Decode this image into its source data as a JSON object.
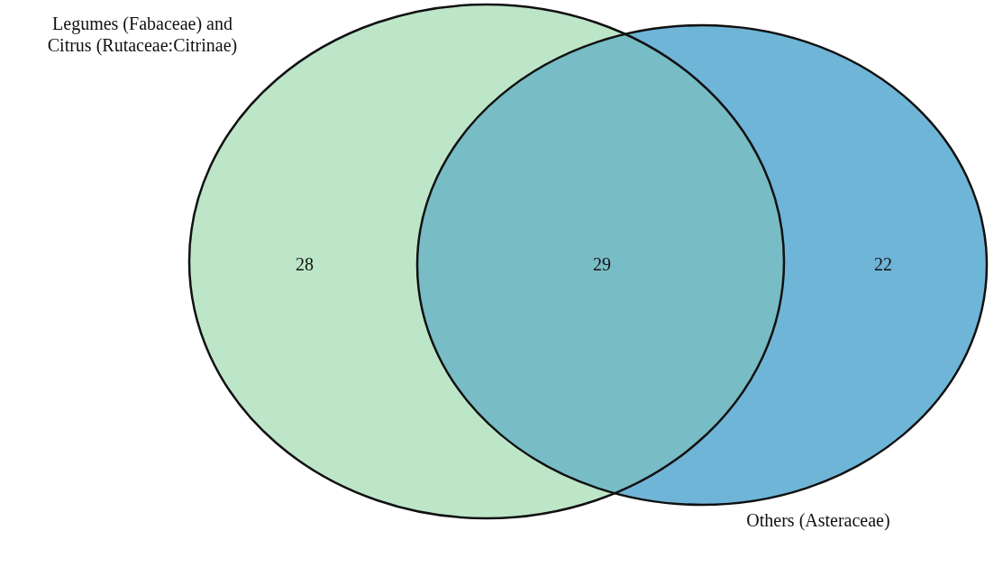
{
  "chart_data": {
    "type": "other",
    "categories": [
      null,
      null,
      null
    ],
    "values": [
      28,
      29,
      22
    ],
    "data_labels": true,
    "colors": [
      "#bde6c8",
      "#78bcc5",
      "#6fb5d8"
    ],
    "annotations": [
      "Legumes (Fabaceae) and\nCitrus (Rutaceae:Citrinae)",
      "Others (Asteraceae)"
    ]
  }
}
